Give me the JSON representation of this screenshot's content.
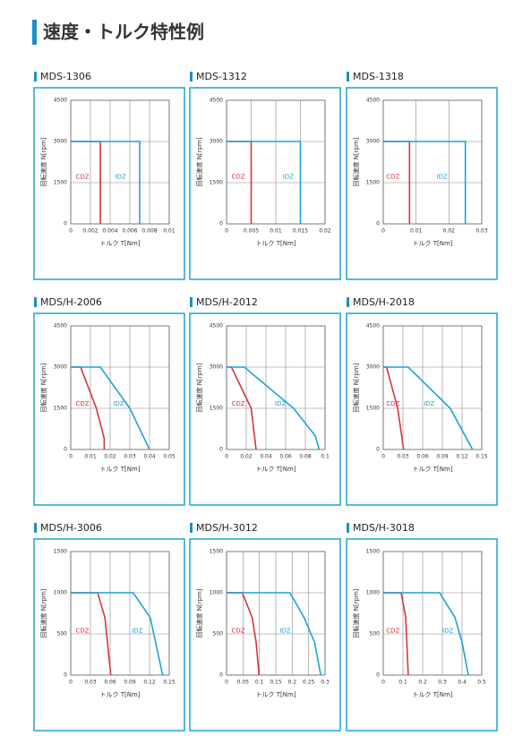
{
  "title": "速度・トルク特性例",
  "chart_data": [
    {
      "type": "line",
      "title": "MDS-1306",
      "xlabel": "トルク T[Nm]",
      "ylabel": "回転速度 N[rpm]",
      "xlim": [
        0,
        0.01
      ],
      "xticks": [
        0,
        0.002,
        0.004,
        0.006,
        0.008,
        0.01
      ],
      "ylim": [
        0,
        4500
      ],
      "yticks": [
        0,
        1500,
        3000,
        4500
      ],
      "grid": true,
      "series": [
        {
          "name": "CDZ",
          "color": "#d8343c",
          "x": [
            0,
            0.003,
            0.003
          ],
          "values": [
            3000,
            3000,
            0
          ]
        },
        {
          "name": "IDZ",
          "color": "#1ba3d4",
          "x": [
            0,
            0.007,
            0.007
          ],
          "values": [
            3000,
            3000,
            0
          ]
        }
      ]
    },
    {
      "type": "line",
      "title": "MDS-1312",
      "xlabel": "トルク T[Nm]",
      "ylabel": "回転速度 N[rpm]",
      "xlim": [
        0,
        0.02
      ],
      "xticks": [
        0,
        0.005,
        0.01,
        0.015,
        0.02
      ],
      "ylim": [
        0,
        4500
      ],
      "yticks": [
        0,
        1500,
        3000,
        4500
      ],
      "grid": true,
      "series": [
        {
          "name": "CDZ",
          "color": "#d8343c",
          "x": [
            0,
            0.005,
            0.005
          ],
          "values": [
            3000,
            3000,
            0
          ]
        },
        {
          "name": "IDZ",
          "color": "#1ba3d4",
          "x": [
            0,
            0.015,
            0.015
          ],
          "values": [
            3000,
            3000,
            0
          ]
        }
      ]
    },
    {
      "type": "line",
      "title": "MDS-1318",
      "xlabel": "トルク T[Nm]",
      "ylabel": "回転速度 N[rpm]",
      "xlim": [
        0,
        0.03
      ],
      "xticks": [
        0,
        0.01,
        0.02,
        0.03
      ],
      "ylim": [
        0,
        4500
      ],
      "yticks": [
        0,
        1500,
        3000,
        4500
      ],
      "grid": true,
      "series": [
        {
          "name": "CDZ",
          "color": "#d8343c",
          "x": [
            0,
            0.008,
            0.008
          ],
          "values": [
            3000,
            3000,
            0
          ]
        },
        {
          "name": "IDZ",
          "color": "#1ba3d4",
          "x": [
            0,
            0.025,
            0.025
          ],
          "values": [
            3000,
            3000,
            0
          ]
        }
      ]
    },
    {
      "type": "line",
      "title": "MDS/H-2006",
      "xlabel": "トルク T[Nm]",
      "ylabel": "回転速度 N[rpm]",
      "xlim": [
        0,
        0.05
      ],
      "xticks": [
        0,
        0.01,
        0.02,
        0.03,
        0.04,
        0.05
      ],
      "ylim": [
        0,
        4500
      ],
      "yticks": [
        0,
        1500,
        3000,
        4500
      ],
      "grid": true,
      "series": [
        {
          "name": "CDZ",
          "color": "#d8343c",
          "x": [
            0,
            0.005,
            0.013,
            0.017,
            0.017
          ],
          "values": [
            3000,
            3000,
            1500,
            400,
            0
          ]
        },
        {
          "name": "IDZ",
          "color": "#1ba3d4",
          "x": [
            0,
            0.015,
            0.03,
            0.04
          ],
          "values": [
            3000,
            3000,
            1500,
            0
          ]
        }
      ]
    },
    {
      "type": "line",
      "title": "MDS/H-2012",
      "xlabel": "トルク T[Nm]",
      "ylabel": "回転速度 N[rpm]",
      "xlim": [
        0,
        0.1
      ],
      "xticks": [
        0,
        0.02,
        0.04,
        0.06,
        0.08,
        0.1
      ],
      "ylim": [
        0,
        4500
      ],
      "yticks": [
        0,
        1500,
        3000,
        4500
      ],
      "grid": true,
      "series": [
        {
          "name": "CDZ",
          "color": "#d8343c",
          "x": [
            0,
            0.005,
            0.025,
            0.03
          ],
          "values": [
            3000,
            3000,
            1500,
            0
          ]
        },
        {
          "name": "IDZ",
          "color": "#1ba3d4",
          "x": [
            0,
            0.018,
            0.068,
            0.09,
            0.094
          ],
          "values": [
            3000,
            3000,
            1500,
            500,
            0
          ]
        }
      ]
    },
    {
      "type": "line",
      "title": "MDS/H-2018",
      "xlabel": "トルク T[Nm]",
      "ylabel": "回転速度 N[rpm]",
      "xlim": [
        0,
        0.15
      ],
      "xticks": [
        0,
        0.03,
        0.06,
        0.09,
        0.12,
        0.15
      ],
      "ylim": [
        0,
        4500
      ],
      "yticks": [
        0,
        1500,
        3000,
        4500
      ],
      "grid": true,
      "series": [
        {
          "name": "CDZ",
          "color": "#d8343c",
          "x": [
            0,
            0.005,
            0.022,
            0.031
          ],
          "values": [
            3000,
            3000,
            1500,
            0
          ]
        },
        {
          "name": "IDZ",
          "color": "#1ba3d4",
          "x": [
            0,
            0.038,
            0.102,
            0.136
          ],
          "values": [
            3000,
            3000,
            1500,
            0
          ]
        }
      ]
    },
    {
      "type": "line",
      "title": "MDS/H-3006",
      "xlabel": "トルク T[Nm]",
      "ylabel": "回転速度 N[rpm]",
      "xlim": [
        0,
        0.15
      ],
      "xticks": [
        0,
        0.03,
        0.06,
        0.09,
        0.12,
        0.15
      ],
      "ylim": [
        0,
        1500
      ],
      "yticks": [
        0,
        500,
        1000,
        1500
      ],
      "grid": true,
      "series": [
        {
          "name": "CDZ",
          "color": "#d8343c",
          "x": [
            0,
            0.041,
            0.052,
            0.061
          ],
          "values": [
            1000,
            1000,
            700,
            0
          ]
        },
        {
          "name": "IDZ",
          "color": "#1ba3d4",
          "x": [
            0,
            0.095,
            0.121,
            0.14
          ],
          "values": [
            1000,
            1000,
            700,
            0
          ]
        }
      ]
    },
    {
      "type": "line",
      "title": "MDS/H-3012",
      "xlabel": "トルク T[Nm]",
      "ylabel": "回転速度 N[rpm]",
      "xlim": [
        0,
        0.3
      ],
      "xticks": [
        0,
        0.05,
        0.1,
        0.15,
        0.2,
        0.25,
        0.3
      ],
      "ylim": [
        0,
        1500
      ],
      "yticks": [
        0,
        500,
        1000,
        1500
      ],
      "grid": true,
      "series": [
        {
          "name": "CDZ",
          "color": "#d8343c",
          "x": [
            0,
            0.048,
            0.078,
            0.09,
            0.099
          ],
          "values": [
            1000,
            1000,
            700,
            400,
            0
          ]
        },
        {
          "name": "IDZ",
          "color": "#1ba3d4",
          "x": [
            0,
            0.193,
            0.236,
            0.268,
            0.287
          ],
          "values": [
            1000,
            1000,
            700,
            400,
            0
          ]
        }
      ]
    },
    {
      "type": "line",
      "title": "MDS/H-3018",
      "xlabel": "トルク T[Nm]",
      "ylabel": "回転速度 N[rpm]",
      "xlim": [
        0,
        0.5
      ],
      "xticks": [
        0,
        0.1,
        0.2,
        0.3,
        0.4,
        0.5
      ],
      "ylim": [
        0,
        1500
      ],
      "yticks": [
        0,
        500,
        1000,
        1500
      ],
      "grid": true,
      "series": [
        {
          "name": "CDZ",
          "color": "#d8343c",
          "x": [
            0,
            0.091,
            0.114,
            0.127
          ],
          "values": [
            1000,
            1000,
            700,
            0
          ]
        },
        {
          "name": "IDZ",
          "color": "#1ba3d4",
          "x": [
            0,
            0.286,
            0.364,
            0.4,
            0.432
          ],
          "values": [
            1000,
            1000,
            700,
            400,
            0
          ]
        }
      ]
    }
  ]
}
